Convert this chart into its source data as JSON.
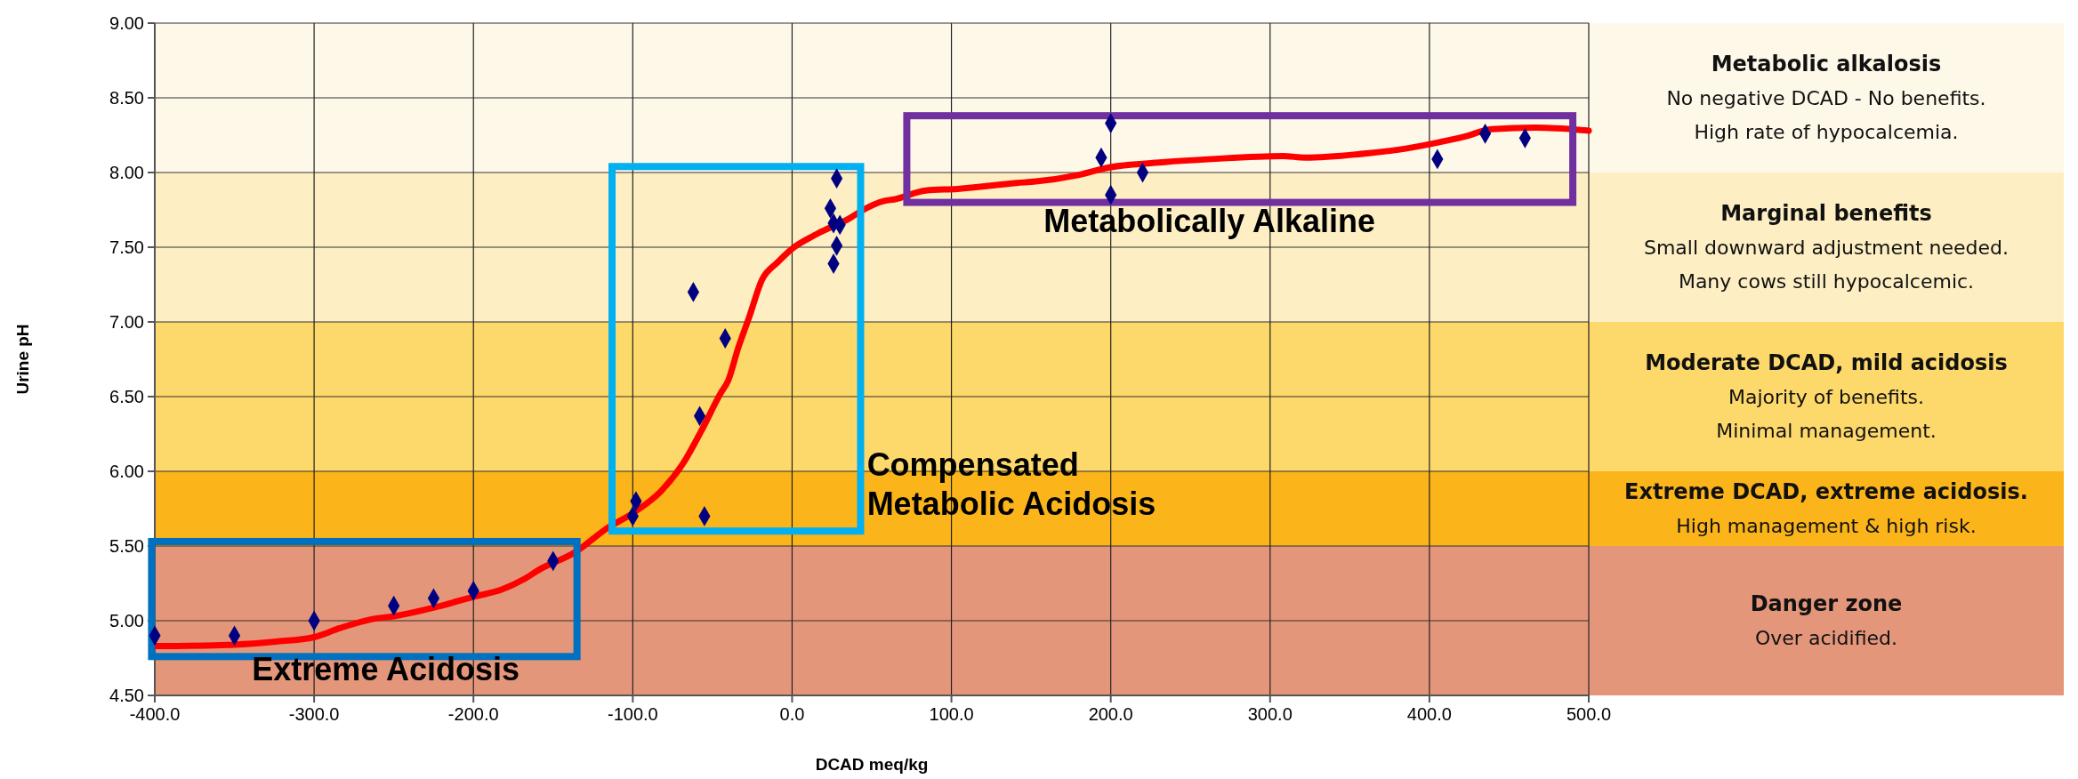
{
  "chart_data": {
    "type": "scatter",
    "xlabel": "DCAD meq/kg",
    "ylabel": "Urine pH",
    "xlim": [
      -400,
      500
    ],
    "ylim": [
      4.5,
      9
    ],
    "xticks": [
      {
        "value": -400,
        "label": "-400.0"
      },
      {
        "value": -300,
        "label": "-300.0"
      },
      {
        "value": -200,
        "label": "-200.0"
      },
      {
        "value": -100,
        "label": "-100.0"
      },
      {
        "value": 0,
        "label": "0.0"
      },
      {
        "value": 100,
        "label": "100.0"
      },
      {
        "value": 200,
        "label": "200.0"
      },
      {
        "value": 300,
        "label": "300.0"
      },
      {
        "value": 400,
        "label": "400.0"
      },
      {
        "value": 500,
        "label": "500.0"
      }
    ],
    "yticks": [
      {
        "value": 4.5,
        "label": "4.50"
      },
      {
        "value": 5,
        "label": "5.00"
      },
      {
        "value": 5.5,
        "label": "5.50"
      },
      {
        "value": 6,
        "label": "6.00"
      },
      {
        "value": 6.5,
        "label": "6.50"
      },
      {
        "value": 7,
        "label": "7.00"
      },
      {
        "value": 7.5,
        "label": "7.50"
      },
      {
        "value": 8,
        "label": "8.00"
      },
      {
        "value": 8.5,
        "label": "8.50"
      },
      {
        "value": 9,
        "label": "9.00"
      }
    ],
    "grid": true,
    "series": [
      {
        "marker": "diamond",
        "color": "#000080",
        "x": [
          -400,
          -350,
          -300,
          -250,
          -225,
          -200,
          -150,
          -100,
          -98,
          -55,
          -58,
          -42,
          -62,
          28,
          24,
          26,
          30,
          28,
          26,
          200,
          194,
          200,
          220,
          405,
          435,
          460
        ],
        "values": [
          4.9,
          4.9,
          5.0,
          5.1,
          5.15,
          5.2,
          5.4,
          5.7,
          5.8,
          5.7,
          6.37,
          6.89,
          7.2,
          7.96,
          7.76,
          7.66,
          7.65,
          7.51,
          7.39,
          8.33,
          8.1,
          7.85,
          8.0,
          8.09,
          8.26,
          8.23
        ]
      },
      {
        "type": "line",
        "color": "#ff0000",
        "x": [
          -400,
          -350,
          -324,
          -300,
          -284,
          -264,
          -250,
          -224,
          -200,
          -182,
          -168,
          -159,
          -136,
          -116,
          -100,
          -82,
          -68,
          -57,
          -45,
          -40,
          -34,
          -27,
          -19,
          -9,
          0,
          14,
          37,
          43,
          58,
          64,
          84,
          104,
          141,
          153,
          178,
          197,
          234,
          263,
          308,
          322,
          362,
          385,
          405,
          422,
          439,
          467,
          500
        ],
        "values": [
          4.83,
          4.84,
          4.86,
          4.89,
          4.95,
          5.01,
          5.03,
          5.09,
          5.16,
          5.21,
          5.28,
          5.34,
          5.46,
          5.62,
          5.72,
          5.87,
          6.06,
          6.27,
          6.52,
          6.61,
          6.82,
          7.03,
          7.28,
          7.4,
          7.49,
          7.58,
          7.7,
          7.74,
          7.81,
          7.82,
          7.88,
          7.89,
          7.93,
          7.94,
          7.98,
          8.03,
          8.07,
          8.09,
          8.11,
          8.1,
          8.13,
          8.16,
          8.2,
          8.24,
          8.29,
          8.3,
          8.28
        ]
      }
    ],
    "bands": [
      {
        "axis": "y",
        "from": 8,
        "to": 9,
        "color": "#fef8e9",
        "label": "Metabolic alkalosis\nNo negative DCAD - No benefits.\nHigh rate of hypocalcemia."
      },
      {
        "axis": "y",
        "from": 7,
        "to": 8,
        "color": "#fdefc3",
        "label": "Marginal benefits\nSmall downward adjustment needed.\nMany cows still hypocalcemic."
      },
      {
        "axis": "y",
        "from": 6,
        "to": 7,
        "color": "#fdd86a",
        "label": "Moderate DCAD, mild acidosis\nMajority of benefits.\nMinimal management."
      },
      {
        "axis": "y",
        "from": 5.5,
        "to": 6,
        "color": "#fbb41a",
        "label": "Extreme DCAD, extreme acidosis.\nHigh management & high risk."
      },
      {
        "axis": "y",
        "from": 4.5,
        "to": 5.5,
        "color": "#e4967b",
        "label": "Danger zone\nOver acidified."
      }
    ],
    "annotations": [
      "Extreme Acidosis",
      "Compensated\nMetabolic Acidosis",
      "Metabolically Alkaline"
    ]
  }
}
